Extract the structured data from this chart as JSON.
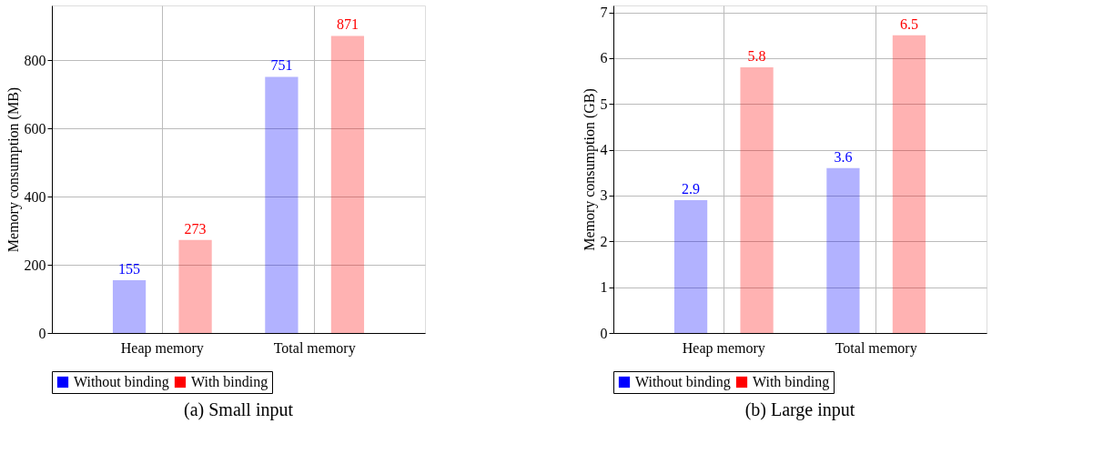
{
  "chart_data": [
    {
      "type": "bar",
      "title": "(a) Small input",
      "ylabel": "Memory consumption (MB)",
      "categories": [
        "Heap memory",
        "Total memory"
      ],
      "series": [
        {
          "name": "Without binding",
          "color": "#0000ff",
          "values": [
            155,
            751
          ]
        },
        {
          "name": "With binding",
          "color": "#ff0000",
          "values": [
            273,
            871
          ]
        }
      ],
      "ylim": [
        0,
        960
      ],
      "yticks": [
        0,
        200,
        400,
        600,
        800
      ],
      "grid": true,
      "legend": "bottom",
      "data_labels": true
    },
    {
      "type": "bar",
      "title": "(b) Large input",
      "ylabel": "Memory consumption (GB)",
      "categories": [
        "Heap memory",
        "Total memory"
      ],
      "series": [
        {
          "name": "Without binding",
          "color": "#0000ff",
          "values": [
            2.9,
            3.6
          ]
        },
        {
          "name": "With binding",
          "color": "#ff0000",
          "values": [
            5.8,
            6.5
          ]
        }
      ],
      "ylim": [
        0,
        7.15
      ],
      "yticks": [
        0,
        1,
        2,
        3,
        4,
        5,
        6,
        7
      ],
      "grid": true,
      "legend": "bottom",
      "data_labels": true
    }
  ]
}
